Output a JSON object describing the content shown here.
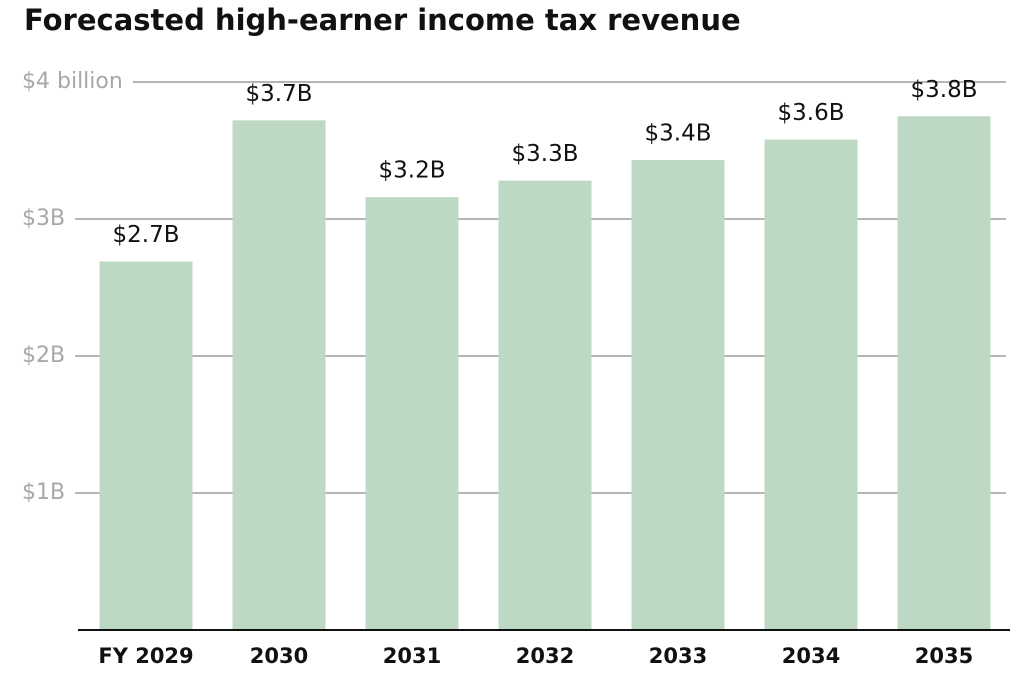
{
  "chart_data": {
    "type": "bar",
    "title": "Forecasted high-earner income tax revenue",
    "categories": [
      "FY 2029",
      "2030",
      "2031",
      "2032",
      "2033",
      "2034",
      "2035"
    ],
    "values": [
      2.69,
      3.72,
      3.16,
      3.28,
      3.43,
      3.58,
      3.75
    ],
    "value_labels": [
      "$2.7B",
      "$3.7B",
      "$3.2B",
      "$3.3B",
      "$3.4B",
      "$3.6B",
      "$3.8B"
    ],
    "color": "#bdd9c3",
    "ylim": [
      0,
      4
    ],
    "yticks": [
      {
        "value": 1,
        "label": "$1B"
      },
      {
        "value": 2,
        "label": "$2B"
      },
      {
        "value": 3,
        "label": "$3B"
      },
      {
        "value": 4,
        "label": "$4 billion"
      }
    ],
    "grid": true
  }
}
